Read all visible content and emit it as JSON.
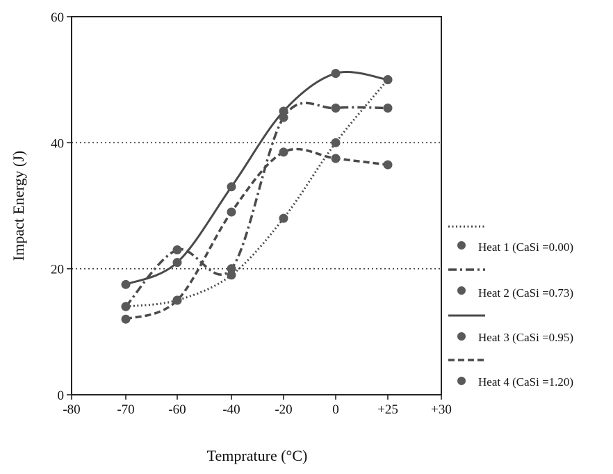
{
  "chart_data": {
    "type": "line",
    "title": "",
    "xlabel": "Temprature (°C)",
    "ylabel": "Impact Energy (J)",
    "xlim": [
      -80,
      30
    ],
    "ylim": [
      0,
      60
    ],
    "x_ticks": [
      -80,
      -70,
      -60,
      -40,
      -20,
      0,
      25,
      30
    ],
    "x_tick_labels": [
      "-80",
      "-70",
      "-60",
      "-40",
      "-20",
      "0",
      "+25",
      "+30"
    ],
    "y_ticks": [
      0,
      20,
      40,
      60
    ],
    "y_tick_labels": [
      "0",
      "20",
      "40",
      "60"
    ],
    "grid": "dotted horizontal lines at 20 and 40",
    "legend_position": "right",
    "series": [
      {
        "name": "Heat 1 (CaSi =0.00)",
        "style": "dotted",
        "x": [
          -70,
          -60,
          -40,
          -20,
          0,
          25
        ],
        "y": [
          14,
          15,
          19,
          28,
          40,
          50
        ]
      },
      {
        "name": "Heat 2 (CaSi =0.73)",
        "style": "dash-dot",
        "x": [
          -70,
          -60,
          -40,
          -20,
          0,
          25
        ],
        "y": [
          14,
          23,
          20,
          44,
          45.5,
          45.5
        ]
      },
      {
        "name": "Heat 3 (CaSi =0.95)",
        "style": "solid",
        "x": [
          -70,
          -60,
          -40,
          -20,
          0,
          25
        ],
        "y": [
          17.5,
          21,
          33,
          45,
          51,
          50
        ]
      },
      {
        "name": "Heat 4 (CaSi =1.20)",
        "style": "dashed",
        "x": [
          -70,
          -60,
          -40,
          -20,
          0,
          25
        ],
        "y": [
          12,
          15,
          29,
          38.5,
          37.5,
          36.5
        ]
      }
    ]
  }
}
